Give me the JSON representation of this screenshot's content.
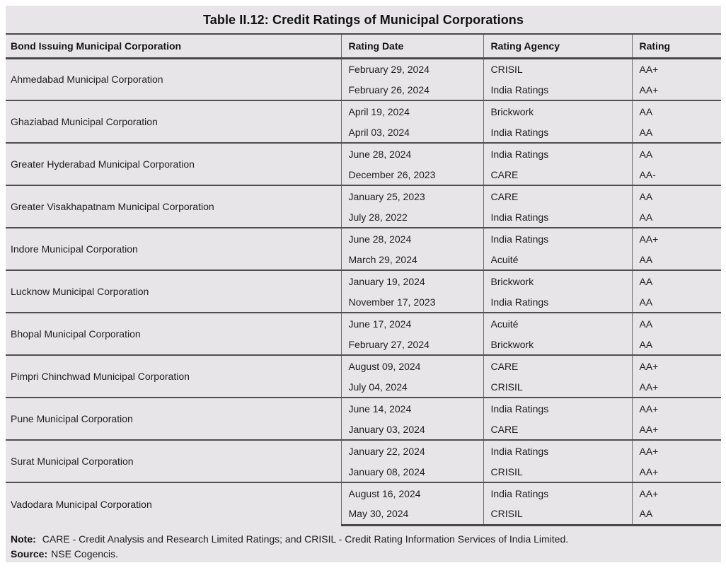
{
  "page": {
    "title": "Table II.12: Credit Ratings of Municipal Corporations"
  },
  "table": {
    "columns": [
      "Bond Issuing Municipal Corporation",
      "Rating Date",
      "Rating Agency",
      "Rating"
    ],
    "groups": [
      {
        "corporation": "Ahmedabad Municipal Corporation",
        "entries": [
          {
            "date": "February 29, 2024",
            "agency": "CRISIL",
            "rating": "AA+"
          },
          {
            "date": "February 26, 2024",
            "agency": "India Ratings",
            "rating": "AA+"
          }
        ]
      },
      {
        "corporation": "Ghaziabad Municipal Corporation",
        "entries": [
          {
            "date": "April 19, 2024",
            "agency": "Brickwork",
            "rating": "AA"
          },
          {
            "date": "April 03, 2024",
            "agency": "India Ratings",
            "rating": "AA"
          }
        ]
      },
      {
        "corporation": "Greater Hyderabad Municipal Corporation",
        "entries": [
          {
            "date": "June 28, 2024",
            "agency": "India Ratings",
            "rating": "AA"
          },
          {
            "date": "December 26, 2023",
            "agency": "CARE",
            "rating": "AA-"
          }
        ]
      },
      {
        "corporation": "Greater Visakhapatnam Municipal Corporation",
        "entries": [
          {
            "date": "January 25, 2023",
            "agency": "CARE",
            "rating": "AA"
          },
          {
            "date": "July 28, 2022",
            "agency": "India Ratings",
            "rating": "AA"
          }
        ]
      },
      {
        "corporation": "Indore Municipal Corporation",
        "entries": [
          {
            "date": "June 28, 2024",
            "agency": "India Ratings",
            "rating": "AA+"
          },
          {
            "date": "March 29, 2024",
            "agency": "Acuité",
            "rating": "AA"
          }
        ]
      },
      {
        "corporation": "Lucknow Municipal Corporation",
        "entries": [
          {
            "date": "January 19, 2024",
            "agency": "Brickwork",
            "rating": "AA"
          },
          {
            "date": "November 17, 2023",
            "agency": "India Ratings",
            "rating": "AA"
          }
        ]
      },
      {
        "corporation": "Bhopal Municipal Corporation",
        "entries": [
          {
            "date": "June 17, 2024",
            "agency": "Acuité",
            "rating": "AA"
          },
          {
            "date": "February 27, 2024",
            "agency": "Brickwork",
            "rating": "AA"
          }
        ]
      },
      {
        "corporation": "Pimpri Chinchwad Municipal Corporation",
        "entries": [
          {
            "date": "August 09, 2024",
            "agency": "CARE",
            "rating": "AA+"
          },
          {
            "date": "July 04, 2024",
            "agency": "CRISIL",
            "rating": "AA+"
          }
        ]
      },
      {
        "corporation": "Pune Municipal Corporation",
        "entries": [
          {
            "date": "June 14, 2024",
            "agency": "India Ratings",
            "rating": "AA+"
          },
          {
            "date": "January 03, 2024",
            "agency": "CARE",
            "rating": "AA+"
          }
        ]
      },
      {
        "corporation": "Surat Municipal Corporation",
        "entries": [
          {
            "date": "January 22, 2024",
            "agency": "India Ratings",
            "rating": "AA+"
          },
          {
            "date": "January 08, 2024",
            "agency": "CRISIL",
            "rating": "AA+"
          }
        ]
      },
      {
        "corporation": "Vadodara Municipal Corporation",
        "entries": [
          {
            "date": "August 16, 2024",
            "agency": "India Ratings",
            "rating": "AA+"
          },
          {
            "date": "May 30, 2024",
            "agency": "CRISIL",
            "rating": "AA"
          }
        ]
      }
    ]
  },
  "footer": {
    "note_label": "Note:",
    "note_text": "CARE - Credit Analysis and Research Limited Ratings; and CRISIL - Credit Rating Information Services of India Limited.",
    "source_label": "Source:",
    "source_text": "NSE Cogencis."
  },
  "colors": {
    "panel_bg": "#e7e5e8",
    "text": "#1d1d1f",
    "rule_strong": "#48484c",
    "rule_group": "#4e4e53",
    "rule_vert": "#6c6c72"
  }
}
